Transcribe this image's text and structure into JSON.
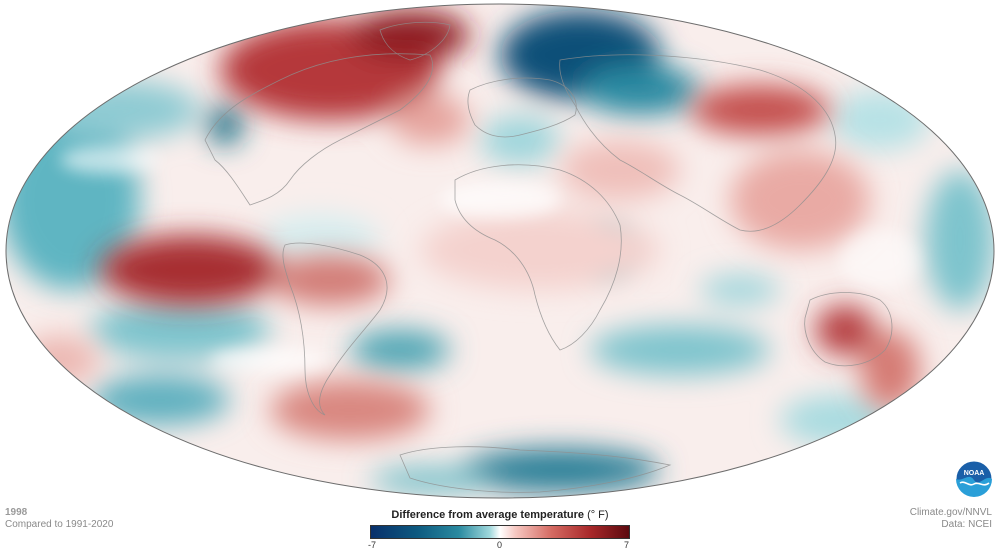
{
  "caption": {
    "year": "1998",
    "baseline": "Compared to 1991-2020"
  },
  "legend": {
    "title_bold": "Difference from average temperature",
    "title_unit": "(° F)",
    "tick_min": "-7",
    "tick_mid": "0",
    "tick_max": "7",
    "colors": {
      "cold_extreme": "#08306b",
      "cold": "#2a8aa0",
      "neutral": "#ffffff",
      "warm": "#d46a62",
      "warm_extreme": "#5c0a0f"
    }
  },
  "credits": {
    "source": "Climate.gov/NNVL",
    "data": "Data: NCEI"
  },
  "logo": {
    "text": "NOAA",
    "icon": "noaa-logo"
  },
  "map": {
    "projection": "mollweide",
    "center_longitude": "0"
  }
}
